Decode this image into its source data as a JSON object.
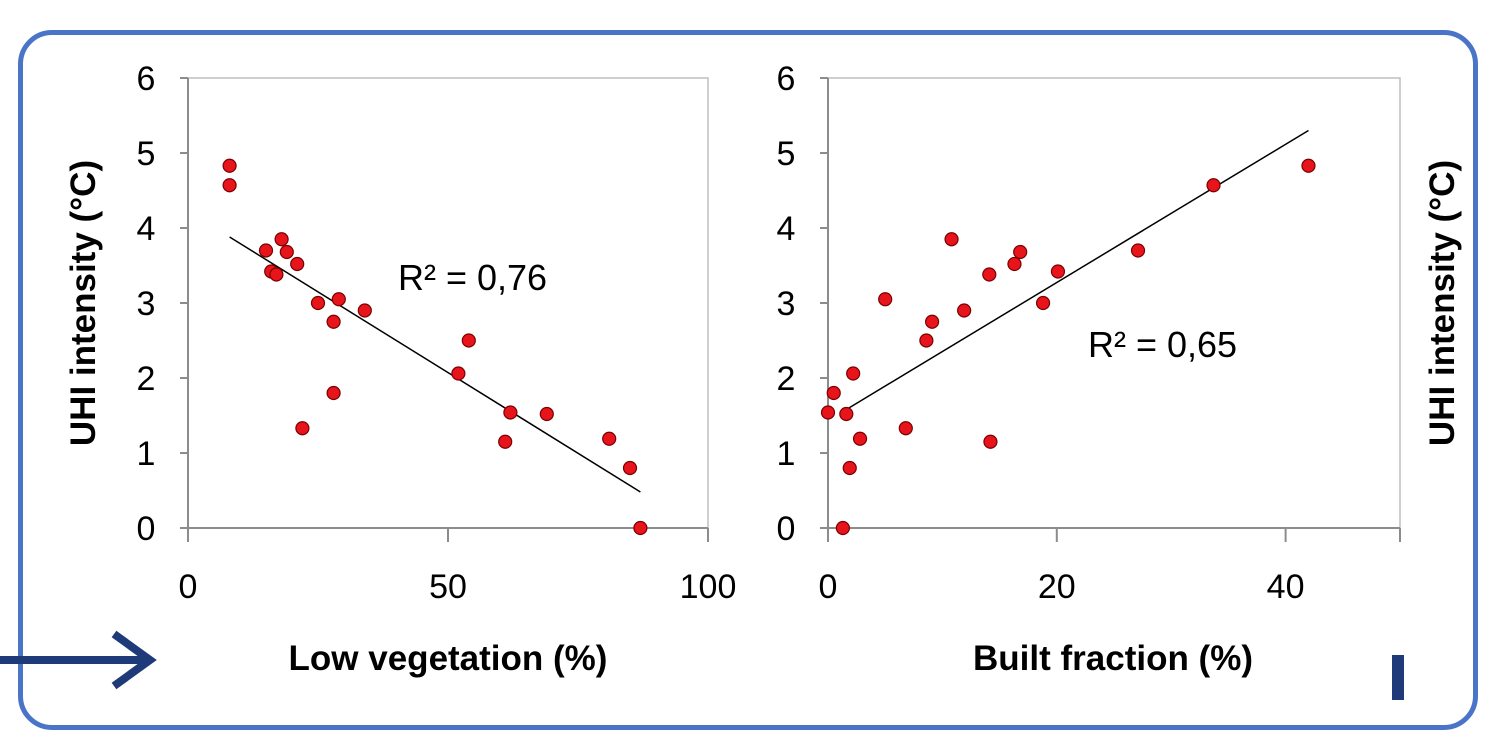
{
  "colors": {
    "frame": "#4a74c8",
    "marker_fill": "#e8141b",
    "marker_stroke": "#7a0000",
    "trendline": "#000000",
    "arrow": "#1f3a78"
  },
  "decorations": {
    "left_arrow_icon": "arrow-right-icon",
    "bottom_right_bar_icon": "vertical-bar-icon"
  },
  "chart_data": [
    {
      "type": "scatter",
      "title": "",
      "xlabel": "Low vegetation (%)",
      "ylabel": "UHI intensity (°C)",
      "xlim": [
        0,
        100
      ],
      "ylim": [
        0,
        6
      ],
      "xticks": [
        "0",
        "50",
        "100"
      ],
      "yticks": [
        "0",
        "1",
        "2",
        "3",
        "4",
        "5",
        "6"
      ],
      "grid": false,
      "annotation": "R² = 0,76",
      "trendline": {
        "x": [
          8,
          87
        ],
        "y": [
          3.88,
          0.48
        ]
      },
      "x": [
        8,
        8,
        15,
        16,
        17,
        18,
        19,
        21,
        22,
        25,
        28,
        28,
        29,
        34,
        52,
        54,
        61,
        62,
        69,
        81,
        85,
        87
      ],
      "y": [
        4.83,
        4.57,
        3.7,
        3.42,
        3.38,
        3.85,
        3.68,
        3.52,
        1.33,
        3.0,
        2.75,
        1.8,
        3.05,
        2.9,
        2.06,
        2.5,
        1.15,
        1.54,
        1.52,
        1.19,
        0.8,
        0.0
      ]
    },
    {
      "type": "scatter",
      "title": "",
      "xlabel": "Built fraction (%)",
      "ylabel": "UHI intensity (°C)",
      "xlim": [
        0,
        50
      ],
      "ylim": [
        0,
        6
      ],
      "xticks": [
        "0",
        "20",
        "40"
      ],
      "yticks": [
        "0",
        "1",
        "2",
        "3",
        "4",
        "5",
        "6"
      ],
      "grid": false,
      "annotation": "R² = 0,65",
      "trendline": {
        "x": [
          1.5,
          42
        ],
        "y": [
          1.57,
          5.3
        ]
      },
      "x": [
        0,
        0.5,
        1.3,
        1.6,
        1.9,
        2.2,
        2.8,
        5.0,
        6.8,
        8.6,
        9.1,
        10.8,
        11.9,
        14.1,
        14.2,
        16.3,
        16.8,
        18.8,
        20.1,
        27.1,
        33.7,
        42.0
      ],
      "y": [
        1.54,
        1.8,
        0.0,
        1.52,
        0.8,
        2.06,
        1.19,
        3.05,
        1.33,
        2.5,
        2.75,
        3.85,
        2.9,
        3.38,
        1.15,
        3.52,
        3.68,
        3.0,
        3.42,
        3.7,
        4.57,
        4.83
      ]
    }
  ]
}
